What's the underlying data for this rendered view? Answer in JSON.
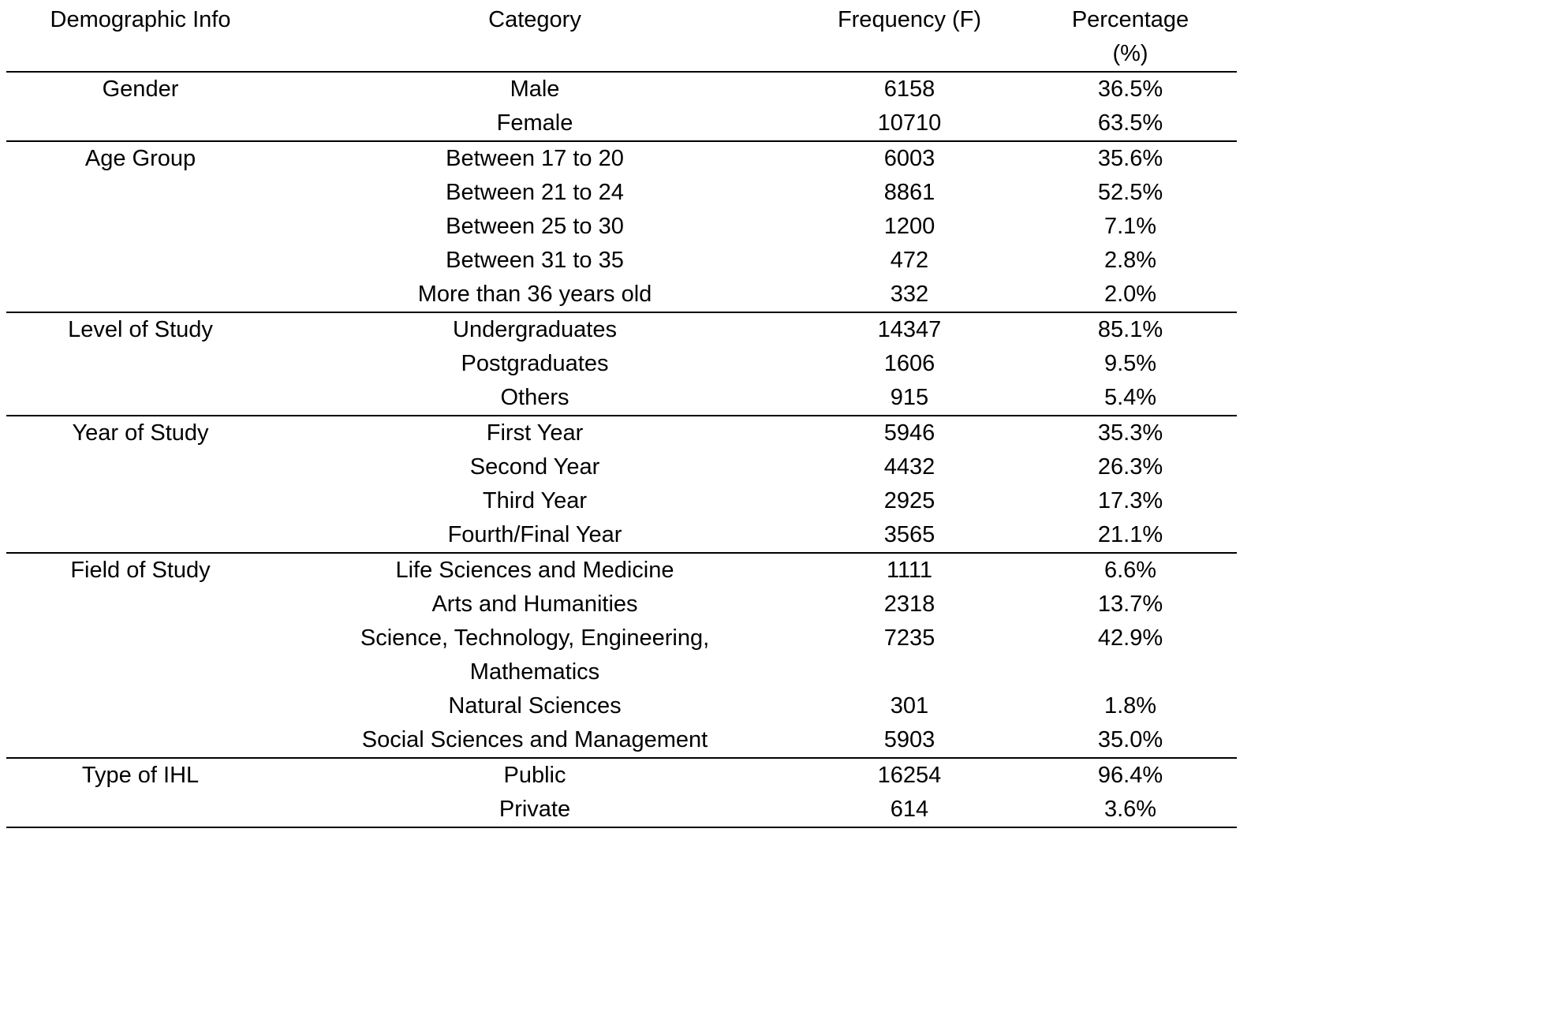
{
  "table": {
    "headers": [
      "Demographic Info",
      "Category",
      "Frequency (F)",
      "Percentage (%)"
    ],
    "groups": [
      {
        "label": "Gender",
        "rows": [
          {
            "category": "Male",
            "frequency": "6158",
            "percentage": "36.5%"
          },
          {
            "category": "Female",
            "frequency": "10710",
            "percentage": "63.5%"
          }
        ]
      },
      {
        "label": "Age Group",
        "rows": [
          {
            "category": "Between 17 to 20",
            "frequency": "6003",
            "percentage": "35.6%"
          },
          {
            "category": "Between 21 to 24",
            "frequency": "8861",
            "percentage": "52.5%"
          },
          {
            "category": "Between 25 to 30",
            "frequency": "1200",
            "percentage": "7.1%"
          },
          {
            "category": "Between 31 to 35",
            "frequency": "472",
            "percentage": "2.8%"
          },
          {
            "category": "More than 36 years old",
            "frequency": "332",
            "percentage": "2.0%"
          }
        ]
      },
      {
        "label": "Level of Study",
        "rows": [
          {
            "category": "Undergraduates",
            "frequency": "14347",
            "percentage": "85.1%"
          },
          {
            "category": "Postgraduates",
            "frequency": "1606",
            "percentage": "9.5%"
          },
          {
            "category": "Others",
            "frequency": "915",
            "percentage": "5.4%"
          }
        ]
      },
      {
        "label": "Year of Study",
        "rows": [
          {
            "category": "First Year",
            "frequency": "5946",
            "percentage": "35.3%"
          },
          {
            "category": "Second Year",
            "frequency": "4432",
            "percentage": "26.3%"
          },
          {
            "category": "Third Year",
            "frequency": "2925",
            "percentage": "17.3%"
          },
          {
            "category": "Fourth/Final Year",
            "frequency": "3565",
            "percentage": "21.1%"
          }
        ]
      },
      {
        "label": "Field of Study",
        "rows": [
          {
            "category": "Life Sciences and Medicine",
            "frequency": "1111",
            "percentage": "6.6%"
          },
          {
            "category": "Arts and Humanities",
            "frequency": "2318",
            "percentage": "13.7%"
          },
          {
            "category": "Science, Technology, Engineering, Mathematics",
            "frequency": "7235",
            "percentage": "42.9%"
          },
          {
            "category": "Natural Sciences",
            "frequency": "301",
            "percentage": "1.8%"
          },
          {
            "category": "Social Sciences and Management",
            "frequency": "5903",
            "percentage": "35.0%"
          }
        ]
      },
      {
        "label": "Type of IHL",
        "rows": [
          {
            "category": "Public",
            "frequency": "16254",
            "percentage": "96.4%"
          },
          {
            "category": "Private",
            "frequency": "614",
            "percentage": "3.6%"
          }
        ]
      }
    ]
  }
}
